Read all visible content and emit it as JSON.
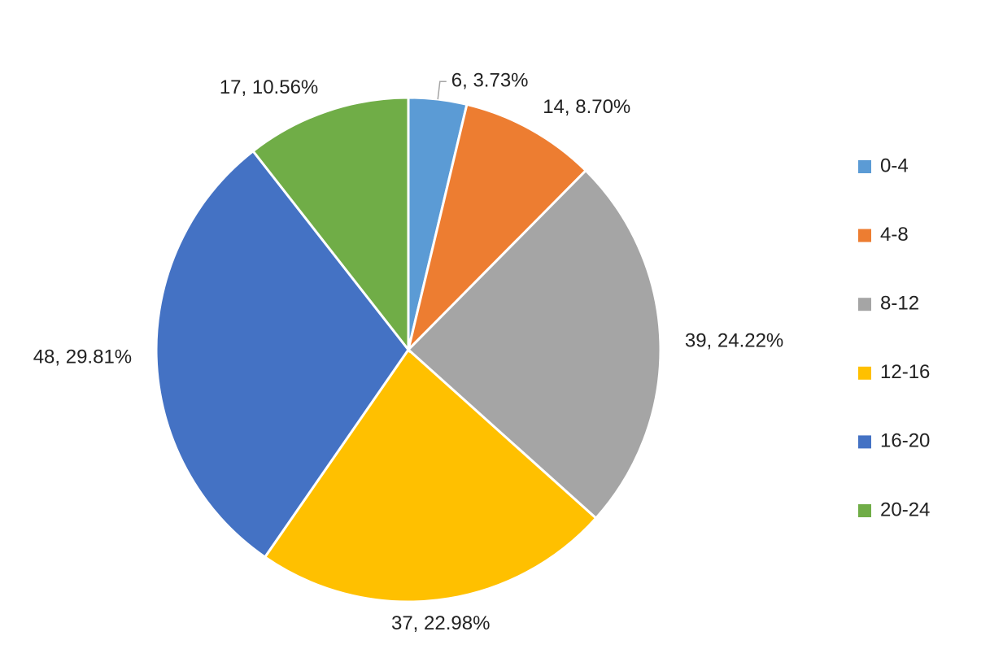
{
  "chart_data": {
    "type": "pie",
    "categories": [
      "0-4",
      "4-8",
      "8-12",
      "12-16",
      "16-20",
      "20-24"
    ],
    "values": [
      6,
      14,
      39,
      37,
      48,
      17
    ],
    "value_labels": [
      "6, 3.73%",
      "14, 8.70%",
      "39, 24.22%",
      "37, 22.98%",
      "48, 29.81%",
      "17, 10.56%"
    ],
    "colors": [
      "#5b9bd5",
      "#ed7d31",
      "#a5a5a5",
      "#ffc000",
      "#4472c4",
      "#70ad47"
    ],
    "legend": "right"
  }
}
